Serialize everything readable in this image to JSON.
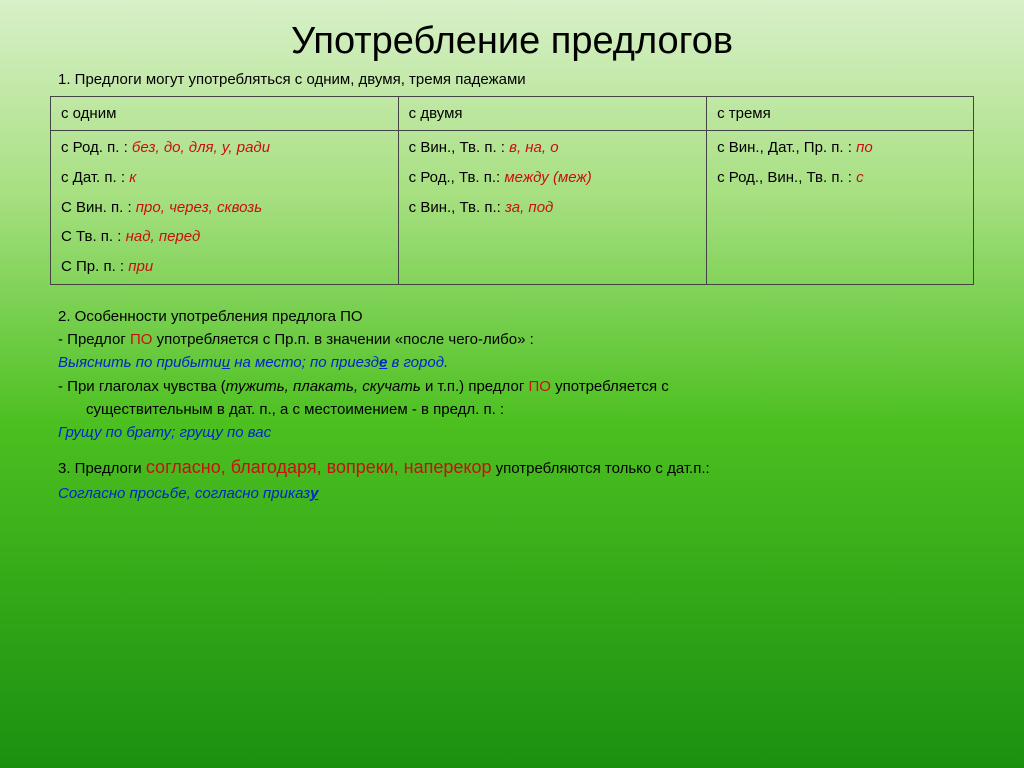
{
  "title": "Употребление предлогов",
  "intro": "1. Предлоги могут употребляться с одним, двумя, тремя падежами",
  "table": {
    "headers": [
      "с одним",
      "с двумя",
      "с тремя"
    ],
    "col1": [
      {
        "prefix": "с  Род. п. :  ",
        "red": "без, до, для, у, ради"
      },
      {
        "prefix": "с  Дат. п. :  ",
        "red": "к"
      },
      {
        "prefix": "С  Вин. п. :  ",
        "red": "про, через, сквозь"
      },
      {
        "prefix": "С  Тв. п. :  ",
        "red": "над, перед"
      },
      {
        "prefix": "С  Пр. п. : ",
        "red": "при"
      }
    ],
    "col2": [
      {
        "prefix": "с Вин., Тв. п. :  ",
        "red": "в,  на,  о"
      },
      {
        "prefix": "с Род., Тв. п.:  ",
        "red": "между (меж)"
      },
      {
        "prefix": "с Вин., Тв. п.:  ",
        "red": "за, под"
      }
    ],
    "col3": [
      {
        "prefix": "с Вин., Дат., Пр. п. :   ",
        "red": "по"
      },
      {
        "prefix": "с Род., Вин., Тв. п. :  ",
        "red": "с"
      }
    ]
  },
  "section2": {
    "heading": "2. Особенности употребления предлога ПО",
    "line1_a": "- Предлог ",
    "line1_po": "ПО",
    "line1_b": "  употребляется с Пр.п. в значении «после чего-либо» :",
    "example1_a": "Выяснить по прибыти",
    "example1_u1": "и",
    "example1_b": " на место; по приезд",
    "example1_u2": "е",
    "example1_c": " в город.",
    "line2_a": "- При глаголах чувства (",
    "line2_ital": "тужить, плакать, скучать",
    "line2_b": " и т.п.) предлог ",
    "line2_po": "ПО",
    "line2_c": " употребляется с",
    "line2_d": "существительным в дат. п., а с местоимением - в предл. п. :",
    "example2": "Грущу по брату; грущу по вас"
  },
  "section3": {
    "line_a": "3. Предлоги ",
    "red": "согласно, благодаря, вопреки, наперекор",
    "line_b": " употребляются только с дат.п.:",
    "example_a": "Согласно просьбе,  согласно приказ",
    "example_u": "у"
  }
}
